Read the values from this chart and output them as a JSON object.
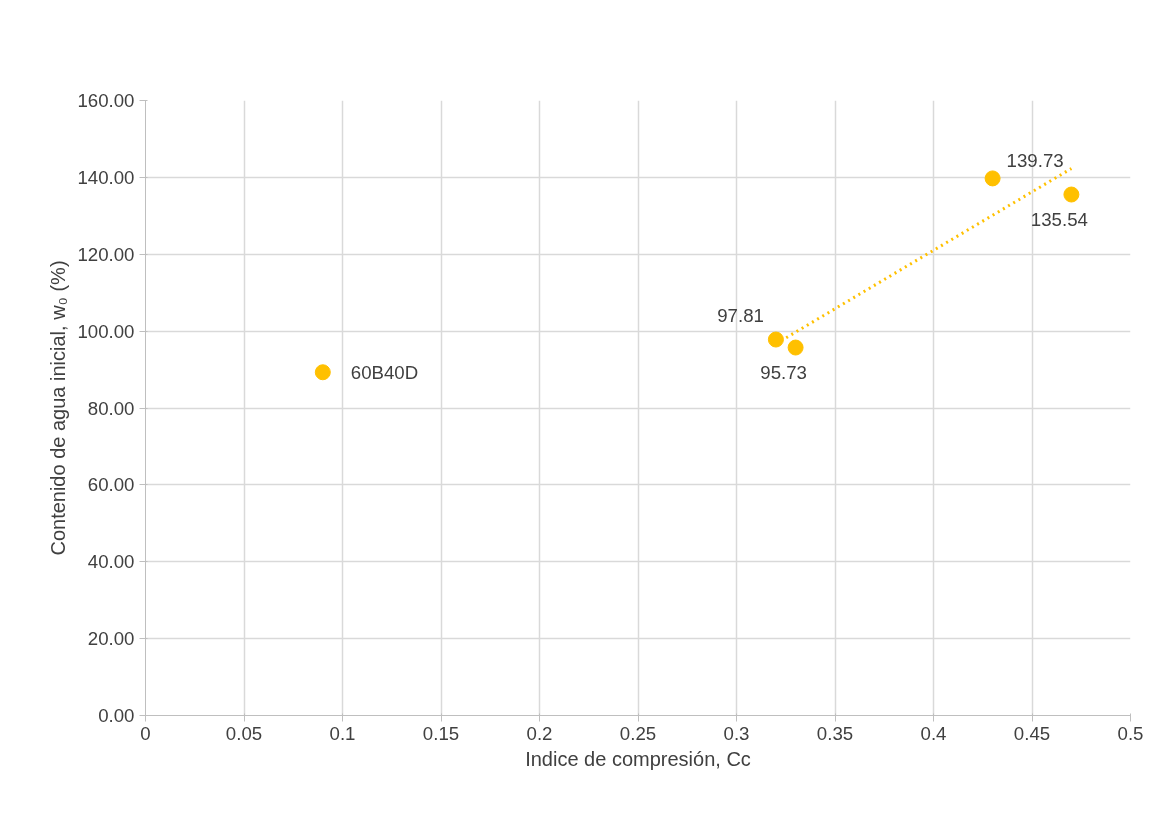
{
  "chart_data": {
    "type": "scatter",
    "xlabel": "Indice de compresión, Cc",
    "ylabel": "Contenido de agua inicial, w₀ (%)",
    "xlim": [
      0,
      0.5
    ],
    "xticks": [
      0,
      0.05,
      0.1,
      0.15,
      0.2,
      0.25,
      0.3,
      0.35,
      0.4,
      0.45,
      0.5
    ],
    "ylim": [
      0,
      160
    ],
    "yticks": [
      {
        "value": 0,
        "label": "0.00"
      },
      {
        "value": 20,
        "label": "20.00"
      },
      {
        "value": 40,
        "label": "40.00"
      },
      {
        "value": 60,
        "label": "60.00"
      },
      {
        "value": 80,
        "label": "80.00"
      },
      {
        "value": 100,
        "label": "100.00"
      },
      {
        "value": 120,
        "label": "120.00"
      },
      {
        "value": 140,
        "label": "140.00"
      },
      {
        "value": 160,
        "label": "160.00"
      }
    ],
    "grid": true,
    "series": [
      {
        "color": "#ffc000",
        "marker": "circle",
        "x": [
          0.09,
          0.32,
          0.33,
          0.43,
          0.47
        ],
        "values": [
          89.3,
          97.81,
          95.73,
          139.73,
          135.54
        ],
        "value_labels": [
          null,
          "97.81",
          "95.73",
          "139.73",
          "135.54"
        ]
      },
      {
        "type": "line",
        "color": "#ffc000",
        "line_style": "dotted",
        "x": [
          0.32,
          0.47
        ],
        "values": [
          96.7,
          142.3
        ]
      }
    ],
    "annotations": [
      {
        "text": "60B40D",
        "x": 0.09,
        "y": 89.3
      }
    ]
  }
}
